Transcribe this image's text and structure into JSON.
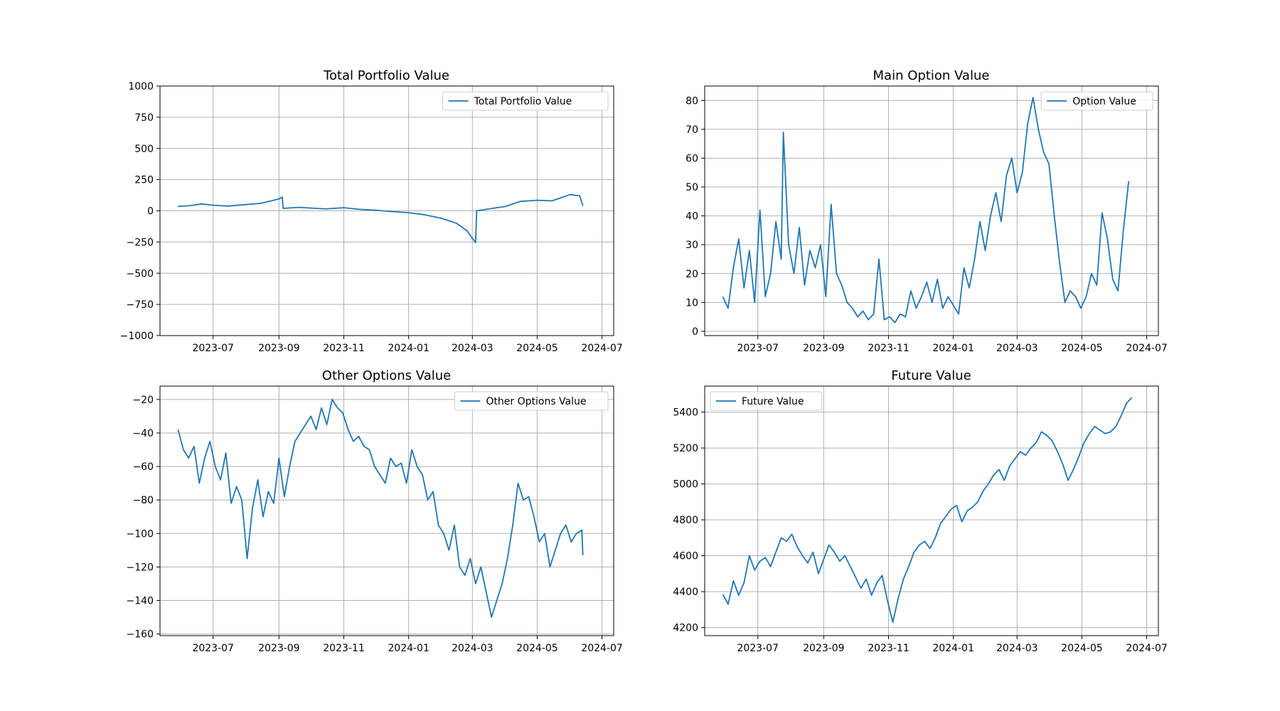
{
  "figure": {
    "background": "#ffffff",
    "line_color": "#1f77b4",
    "grid_color": "#b0b0b0"
  },
  "chart_data": [
    {
      "type": "line",
      "title": "Total Portfolio Value",
      "xlabel": "",
      "ylabel": "",
      "x_ticks": [
        "2023-07",
        "2023-09",
        "2023-11",
        "2024-01",
        "2024-03",
        "2024-05",
        "2024-07"
      ],
      "y_ticks": [
        -1000,
        -750,
        -500,
        -250,
        0,
        250,
        500,
        750,
        1000
      ],
      "y_tick_labels": [
        "−1000",
        "−750",
        "−500",
        "−250",
        "0",
        "250",
        "500",
        "750",
        "1000"
      ],
      "ylim": [
        -1000,
        1000
      ],
      "grid": true,
      "legend": "upper right",
      "series": [
        {
          "name": "Total Portfolio Value",
          "x": [
            "2023-05-29",
            "2023-06-10",
            "2023-06-20",
            "2023-07-01",
            "2023-07-15",
            "2023-08-01",
            "2023-08-15",
            "2023-09-01",
            "2023-09-04",
            "2023-09-05",
            "2023-09-20",
            "2023-10-01",
            "2023-10-15",
            "2023-11-01",
            "2023-11-15",
            "2023-12-01",
            "2023-12-15",
            "2024-01-01",
            "2024-01-15",
            "2024-02-01",
            "2024-02-15",
            "2024-02-25",
            "2024-03-01",
            "2024-03-04",
            "2024-03-05",
            "2024-03-20",
            "2024-04-01",
            "2024-04-15",
            "2024-05-01",
            "2024-05-15",
            "2024-06-01",
            "2024-06-10",
            "2024-06-13"
          ],
          "y": [
            35,
            42,
            55,
            45,
            38,
            50,
            60,
            95,
            110,
            20,
            28,
            22,
            15,
            25,
            12,
            5,
            -5,
            -15,
            -30,
            -60,
            -100,
            -160,
            -220,
            -255,
            0,
            20,
            35,
            75,
            85,
            80,
            130,
            120,
            40
          ]
        }
      ]
    },
    {
      "type": "line",
      "title": "Main Option Value",
      "xlabel": "",
      "ylabel": "",
      "x_ticks": [
        "2023-07",
        "2023-09",
        "2023-11",
        "2024-01",
        "2024-03",
        "2024-05",
        "2024-07"
      ],
      "y_ticks": [
        0,
        10,
        20,
        30,
        40,
        50,
        60,
        70,
        80
      ],
      "y_tick_labels": [
        "0",
        "10",
        "20",
        "30",
        "40",
        "50",
        "60",
        "70",
        "80"
      ],
      "ylim": [
        -1.5,
        85
      ],
      "grid": true,
      "legend": "upper right",
      "series": [
        {
          "name": "Option Value",
          "x": [
            "2023-05-29",
            "2023-06-03",
            "2023-06-08",
            "2023-06-13",
            "2023-06-18",
            "2023-06-23",
            "2023-06-28",
            "2023-07-03",
            "2023-07-08",
            "2023-07-13",
            "2023-07-18",
            "2023-07-23",
            "2023-07-25",
            "2023-07-30",
            "2023-08-04",
            "2023-08-09",
            "2023-08-14",
            "2023-08-19",
            "2023-08-24",
            "2023-08-29",
            "2023-09-03",
            "2023-09-08",
            "2023-09-13",
            "2023-09-18",
            "2023-09-23",
            "2023-09-28",
            "2023-10-03",
            "2023-10-08",
            "2023-10-13",
            "2023-10-18",
            "2023-10-23",
            "2023-10-28",
            "2023-11-02",
            "2023-11-07",
            "2023-11-12",
            "2023-11-17",
            "2023-11-22",
            "2023-11-27",
            "2023-12-02",
            "2023-12-07",
            "2023-12-12",
            "2023-12-17",
            "2023-12-22",
            "2023-12-27",
            "2024-01-01",
            "2024-01-06",
            "2024-01-11",
            "2024-01-16",
            "2024-01-21",
            "2024-01-26",
            "2024-01-31",
            "2024-02-05",
            "2024-02-10",
            "2024-02-15",
            "2024-02-20",
            "2024-02-25",
            "2024-03-01",
            "2024-03-06",
            "2024-03-11",
            "2024-03-16",
            "2024-03-21",
            "2024-03-26",
            "2024-03-31",
            "2024-04-05",
            "2024-04-10",
            "2024-04-15",
            "2024-04-20",
            "2024-04-25",
            "2024-04-30",
            "2024-05-05",
            "2024-05-10",
            "2024-05-15",
            "2024-05-20",
            "2024-05-25",
            "2024-05-30",
            "2024-06-04",
            "2024-06-09",
            "2024-06-14"
          ],
          "y": [
            12,
            8,
            22,
            32,
            15,
            28,
            10,
            42,
            12,
            20,
            38,
            25,
            69,
            30,
            20,
            36,
            16,
            28,
            22,
            30,
            12,
            44,
            20,
            16,
            10,
            8,
            5,
            7,
            4,
            6,
            25,
            4,
            5,
            3,
            6,
            5,
            14,
            8,
            12,
            17,
            10,
            18,
            8,
            12,
            9,
            6,
            22,
            15,
            25,
            38,
            28,
            40,
            48,
            38,
            54,
            60,
            48,
            55,
            72,
            81,
            70,
            62,
            58,
            40,
            24,
            10,
            14,
            12,
            8,
            12,
            20,
            16,
            41,
            32,
            18,
            14,
            35,
            52
          ],
          "markers": "none"
        }
      ]
    },
    {
      "type": "line",
      "title": "Other Options Value",
      "xlabel": "",
      "ylabel": "",
      "x_ticks": [
        "2023-07",
        "2023-09",
        "2023-11",
        "2024-01",
        "2024-03",
        "2024-05",
        "2024-07"
      ],
      "y_ticks": [
        -160,
        -140,
        -120,
        -100,
        -80,
        -60,
        -40,
        -20
      ],
      "y_tick_labels": [
        "−160",
        "−140",
        "−120",
        "−100",
        "−80",
        "−60",
        "−40",
        "−20"
      ],
      "ylim": [
        -161,
        -12
      ],
      "grid": true,
      "legend": "upper right",
      "series": [
        {
          "name": "Other Options Value",
          "x": [
            "2023-05-29",
            "2023-06-03",
            "2023-06-08",
            "2023-06-13",
            "2023-06-18",
            "2023-06-23",
            "2023-06-28",
            "2023-07-03",
            "2023-07-08",
            "2023-07-13",
            "2023-07-18",
            "2023-07-23",
            "2023-07-28",
            "2023-08-02",
            "2023-08-07",
            "2023-08-12",
            "2023-08-17",
            "2023-08-22",
            "2023-08-27",
            "2023-09-01",
            "2023-09-06",
            "2023-09-11",
            "2023-09-16",
            "2023-09-21",
            "2023-09-26",
            "2023-10-01",
            "2023-10-06",
            "2023-10-11",
            "2023-10-16",
            "2023-10-21",
            "2023-10-26",
            "2023-10-31",
            "2023-11-05",
            "2023-11-10",
            "2023-11-15",
            "2023-11-20",
            "2023-11-25",
            "2023-11-30",
            "2023-12-05",
            "2023-12-10",
            "2023-12-15",
            "2023-12-20",
            "2023-12-25",
            "2023-12-30",
            "2024-01-04",
            "2024-01-09",
            "2024-01-14",
            "2024-01-19",
            "2024-01-24",
            "2024-01-29",
            "2024-02-03",
            "2024-02-08",
            "2024-02-13",
            "2024-02-18",
            "2024-02-23",
            "2024-02-28",
            "2024-03-04",
            "2024-03-09",
            "2024-03-14",
            "2024-03-19",
            "2024-03-24",
            "2024-03-29",
            "2024-04-03",
            "2024-04-08",
            "2024-04-13",
            "2024-04-18",
            "2024-04-23",
            "2024-04-28",
            "2024-05-03",
            "2024-05-08",
            "2024-05-13",
            "2024-05-18",
            "2024-05-23",
            "2024-05-28",
            "2024-06-02",
            "2024-06-07",
            "2024-06-12",
            "2024-06-13"
          ],
          "y": [
            -38,
            -50,
            -55,
            -48,
            -70,
            -55,
            -45,
            -60,
            -68,
            -52,
            -82,
            -72,
            -80,
            -115,
            -85,
            -68,
            -90,
            -75,
            -82,
            -55,
            -78,
            -60,
            -45,
            -40,
            -35,
            -30,
            -38,
            -25,
            -35,
            -20,
            -25,
            -28,
            -38,
            -45,
            -42,
            -48,
            -50,
            -60,
            -65,
            -70,
            -55,
            -60,
            -58,
            -70,
            -50,
            -60,
            -65,
            -80,
            -75,
            -95,
            -100,
            -110,
            -95,
            -120,
            -125,
            -115,
            -130,
            -120,
            -135,
            -150,
            -140,
            -130,
            -115,
            -95,
            -70,
            -80,
            -78,
            -90,
            -105,
            -100,
            -120,
            -110,
            -100,
            -95,
            -105,
            -100,
            -98,
            -113
          ]
        }
      ]
    },
    {
      "type": "line",
      "title": "Future Value",
      "xlabel": "",
      "ylabel": "",
      "x_ticks": [
        "2023-07",
        "2023-09",
        "2023-11",
        "2024-01",
        "2024-03",
        "2024-05",
        "2024-07"
      ],
      "y_ticks": [
        4200,
        4400,
        4600,
        4800,
        5000,
        5200,
        5400
      ],
      "y_tick_labels": [
        "4200",
        "4400",
        "4600",
        "4800",
        "5000",
        "5200",
        "5400"
      ],
      "ylim": [
        4155,
        5545
      ],
      "grid": true,
      "legend": "upper left",
      "series": [
        {
          "name": "Future Value",
          "x": [
            "2023-05-29",
            "2023-06-03",
            "2023-06-08",
            "2023-06-13",
            "2023-06-18",
            "2023-06-23",
            "2023-06-28",
            "2023-07-03",
            "2023-07-08",
            "2023-07-13",
            "2023-07-18",
            "2023-07-23",
            "2023-07-28",
            "2023-08-02",
            "2023-08-07",
            "2023-08-12",
            "2023-08-17",
            "2023-08-22",
            "2023-08-27",
            "2023-09-01",
            "2023-09-06",
            "2023-09-11",
            "2023-09-16",
            "2023-09-21",
            "2023-09-26",
            "2023-10-01",
            "2023-10-06",
            "2023-10-11",
            "2023-10-16",
            "2023-10-21",
            "2023-10-26",
            "2023-10-31",
            "2023-11-05",
            "2023-11-10",
            "2023-11-15",
            "2023-11-20",
            "2023-11-25",
            "2023-11-30",
            "2023-12-05",
            "2023-12-10",
            "2023-12-15",
            "2023-12-20",
            "2023-12-25",
            "2023-12-30",
            "2024-01-04",
            "2024-01-09",
            "2024-01-14",
            "2024-01-19",
            "2024-01-24",
            "2024-01-29",
            "2024-02-03",
            "2024-02-08",
            "2024-02-13",
            "2024-02-18",
            "2024-02-23",
            "2024-02-28",
            "2024-03-04",
            "2024-03-09",
            "2024-03-14",
            "2024-03-19",
            "2024-03-24",
            "2024-03-29",
            "2024-04-03",
            "2024-04-08",
            "2024-04-13",
            "2024-04-18",
            "2024-04-23",
            "2024-04-28",
            "2024-05-03",
            "2024-05-08",
            "2024-05-13",
            "2024-05-18",
            "2024-05-23",
            "2024-05-28",
            "2024-06-02",
            "2024-06-07",
            "2024-06-12",
            "2024-06-17"
          ],
          "y": [
            4385,
            4330,
            4460,
            4380,
            4450,
            4600,
            4520,
            4570,
            4590,
            4540,
            4620,
            4700,
            4680,
            4720,
            4650,
            4600,
            4560,
            4620,
            4500,
            4580,
            4660,
            4620,
            4570,
            4600,
            4540,
            4480,
            4420,
            4470,
            4380,
            4450,
            4490,
            4350,
            4230,
            4360,
            4470,
            4540,
            4620,
            4660,
            4680,
            4640,
            4700,
            4780,
            4820,
            4860,
            4880,
            4790,
            4850,
            4870,
            4900,
            4960,
            5000,
            5050,
            5080,
            5020,
            5100,
            5140,
            5180,
            5160,
            5200,
            5230,
            5290,
            5270,
            5240,
            5180,
            5110,
            5020,
            5080,
            5150,
            5230,
            5280,
            5320,
            5300,
            5280,
            5290,
            5320,
            5380,
            5450,
            5480
          ]
        }
      ]
    }
  ]
}
